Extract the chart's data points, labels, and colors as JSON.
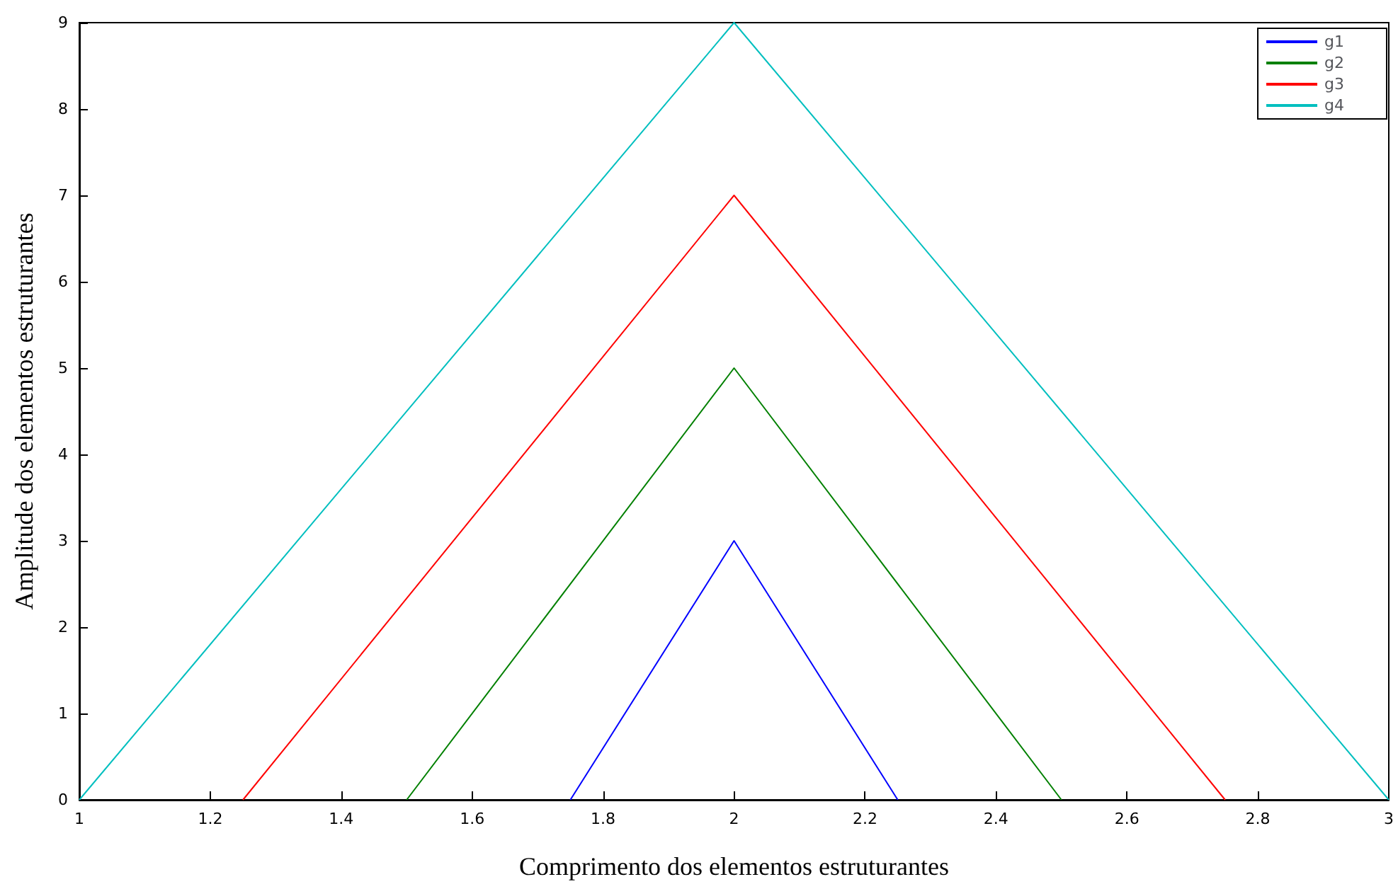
{
  "chart_data": {
    "type": "line",
    "xlabel": "Comprimento dos elementos estruturantes",
    "ylabel": "Amplitude dos elementos estruturantes",
    "series": [
      {
        "name": "g1",
        "color": "#0000ff",
        "x": [
          1.75,
          2,
          2.25
        ],
        "values": [
          0,
          3,
          0
        ]
      },
      {
        "name": "g2",
        "color": "#008000",
        "x": [
          1.5,
          2,
          2.5
        ],
        "values": [
          0,
          5,
          0
        ]
      },
      {
        "name": "g3",
        "color": "#ff0000",
        "x": [
          1.25,
          2,
          2.75
        ],
        "values": [
          0,
          7,
          0
        ]
      },
      {
        "name": "g4",
        "color": "#00bfbf",
        "x": [
          1,
          2,
          3
        ],
        "values": [
          0,
          9,
          0
        ]
      }
    ],
    "xlim": [
      1,
      3
    ],
    "xticks": [
      1,
      1.2,
      1.4,
      1.6,
      1.8,
      2,
      2.2,
      2.4,
      2.6,
      2.8,
      3
    ],
    "ylim": [
      0,
      9
    ],
    "yticks": [
      0,
      1,
      2,
      3,
      4,
      5,
      6,
      7,
      8,
      9
    ],
    "grid": false,
    "legend": "top right",
    "marker": "none",
    "line_style": "solid"
  }
}
